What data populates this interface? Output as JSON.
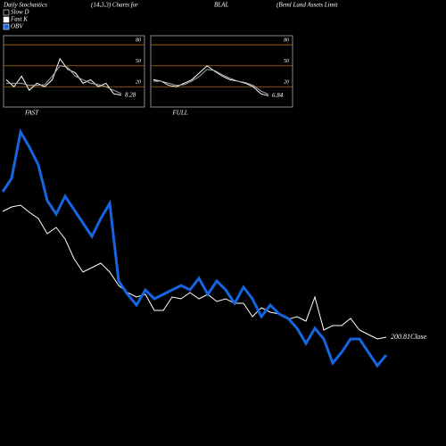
{
  "chart_data": [
    {
      "type": "line",
      "title": "FAST",
      "value_label": "8.28",
      "ylim": [
        -9,
        93
      ],
      "yticks": [
        20,
        50,
        80
      ],
      "grid_color": "#b36b00",
      "series": [
        {
          "color": "#ffffff",
          "values": [
            30,
            20,
            35,
            15,
            25,
            20,
            30,
            60,
            45,
            40,
            25,
            30,
            20,
            25,
            10,
            8
          ]
        },
        {
          "color": "#aaaaaa",
          "values": [
            25,
            25,
            25,
            22,
            22,
            23,
            35,
            50,
            48,
            35,
            30,
            25,
            23,
            20,
            15,
            10
          ]
        }
      ]
    },
    {
      "type": "line",
      "title": "FULL",
      "value_label": "6.84",
      "ylim": [
        -9,
        93
      ],
      "yticks": [
        20,
        50,
        80
      ],
      "grid_color": "#b36b00",
      "series": [
        {
          "color": "#ffffff",
          "values": [
            30,
            28,
            22,
            20,
            25,
            30,
            40,
            50,
            42,
            35,
            30,
            28,
            25,
            20,
            10,
            7
          ]
        },
        {
          "color": "#aaaaaa",
          "values": [
            28,
            28,
            25,
            22,
            23,
            28,
            35,
            45,
            43,
            37,
            32,
            28,
            26,
            22,
            14,
            9
          ]
        }
      ]
    },
    {
      "type": "line",
      "header": [
        "Daily Stochastics",
        "(14,3,3) Charts for",
        "BLAL",
        "(Beml Land Assets Limit"
      ],
      "legend": [
        {
          "name": "Slow D",
          "color": "#000000"
        },
        {
          "name": "Fast K",
          "color": "#ffffff"
        },
        {
          "name": "OBV",
          "color": "#1565e0"
        }
      ],
      "end_label": "200.81Close",
      "ylim": [
        0,
        400
      ],
      "series": [
        {
          "color": "#ffffff",
          "values": [
            258,
            263,
            265,
            257,
            250,
            233,
            240,
            227,
            205,
            190,
            195,
            200,
            190,
            175,
            167,
            162,
            165,
            147,
            147,
            162,
            160,
            167,
            160,
            165,
            157,
            160,
            155,
            155,
            140,
            150,
            145,
            143,
            137,
            140,
            135,
            162,
            125,
            130,
            130,
            138,
            125,
            120,
            115,
            117
          ]
        },
        {
          "color": "#1565e0",
          "width": 3,
          "values": [
            280,
            295,
            347,
            330,
            310,
            270,
            255,
            275,
            260,
            245,
            230,
            250,
            267,
            180,
            165,
            153,
            170,
            160,
            165,
            170,
            175,
            170,
            183,
            165,
            180,
            170,
            155,
            173,
            160,
            140,
            153,
            143,
            138,
            127,
            110,
            127,
            115,
            88,
            100,
            115,
            115,
            100,
            85,
            97
          ]
        }
      ]
    }
  ]
}
